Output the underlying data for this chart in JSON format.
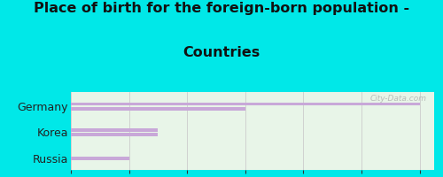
{
  "title_line1": "Place of birth for the foreign-born population -",
  "title_line2": "Countries",
  "categories": [
    "Germany",
    "Korea",
    "Russia"
  ],
  "bars": [
    [
      12,
      6
    ],
    [
      3,
      3
    ],
    [
      2
    ]
  ],
  "bar_color": "#c8a8d8",
  "bg_color": "#00e8e8",
  "plot_bg_top": "#e8f5e8",
  "plot_bg_bottom": "#f5fff5",
  "xlim": [
    0,
    12.5
  ],
  "xticks": [
    0,
    2,
    4,
    6,
    8,
    10,
    12
  ],
  "title_fontsize": 11.5,
  "label_fontsize": 9,
  "tick_fontsize": 8,
  "watermark": "City-Data.com"
}
